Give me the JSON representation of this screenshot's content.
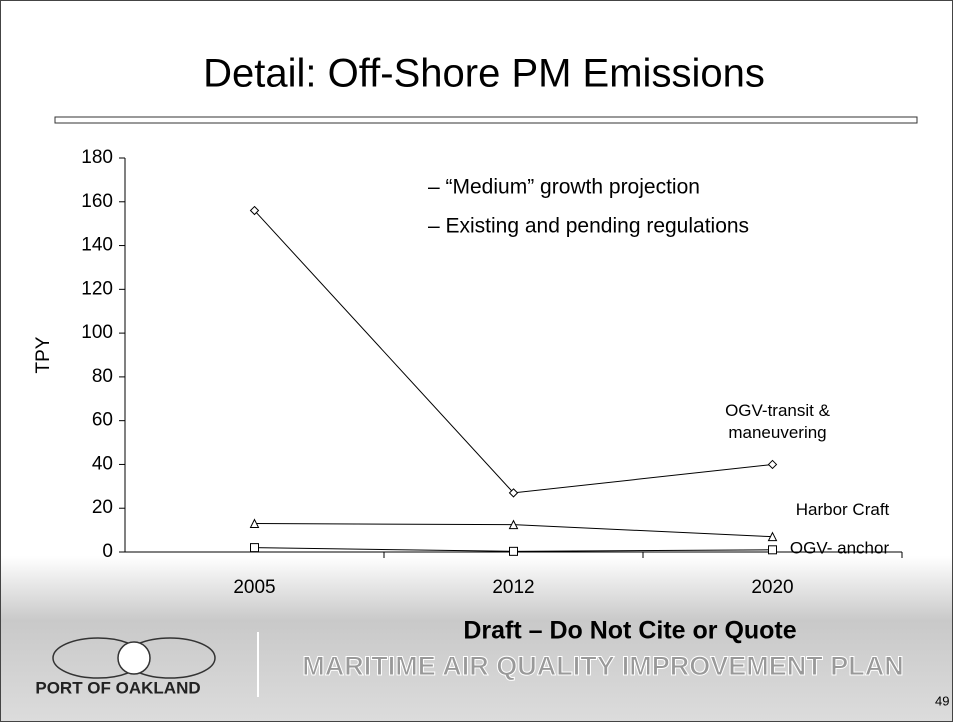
{
  "chart_data": {
    "type": "line",
    "title": "Detail: Off-Shore PM Emissions",
    "ylabel": "TPY",
    "categories": [
      "2005",
      "2012",
      "2020"
    ],
    "ylim": [
      0,
      180
    ],
    "yticks": [
      0,
      20,
      40,
      60,
      80,
      100,
      120,
      140,
      160,
      180
    ],
    "color": "#000000",
    "annotations": [
      "– “Medium” growth projection",
      "– Existing and pending regulations"
    ],
    "series": [
      {
        "name": "OGV-transit & maneuvering",
        "marker": "diamond",
        "values": [
          156,
          27,
          40
        ]
      },
      {
        "name": "Harbor Craft",
        "marker": "triangle",
        "values": [
          13,
          12.5,
          7
        ]
      },
      {
        "name": "OGV- anchor",
        "marker": "square",
        "values": [
          2,
          0.3,
          1
        ]
      }
    ]
  },
  "footer": {
    "draft": "Draft – Do Not Cite or Quote",
    "plan": "MARITIME AIR QUALITY IMPROVEMENT PLAN",
    "logo": "PORT OF OAKLAND",
    "page": "49"
  }
}
